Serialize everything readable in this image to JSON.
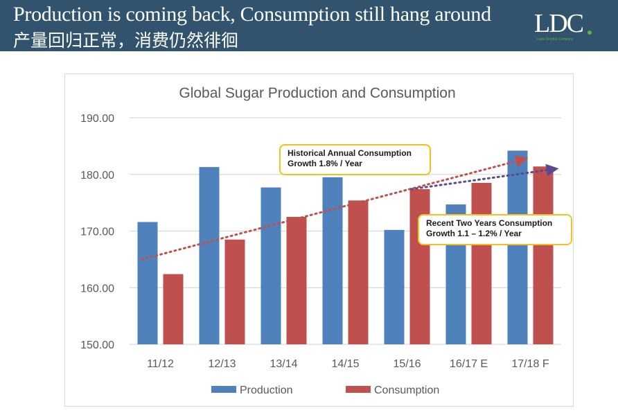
{
  "header": {
    "title_en": "Production is coming back, Consumption still hang around",
    "title_zh": "产量回归正常，消费仍然徘徊",
    "logo_text": "LDC",
    "logo_subtext": "Louis Dreyfus Company",
    "background_color": "#31536d",
    "logo_accent_color": "#5cb33e"
  },
  "chart_data": {
    "type": "bar",
    "title": "Global Sugar Production and Consumption",
    "xlabel": "",
    "ylabel": "",
    "categories": [
      "11/12",
      "12/13",
      "13/14",
      "14/15",
      "15/16",
      "16/17 E",
      "17/18 F"
    ],
    "series": [
      {
        "name": "Production",
        "color": "#4f81bd",
        "values": [
          171.6,
          181.3,
          177.7,
          179.5,
          170.2,
          174.7,
          184.2
        ]
      },
      {
        "name": "Consumption",
        "color": "#c0504d",
        "values": [
          162.4,
          168.5,
          172.5,
          175.4,
          177.4,
          178.5,
          181.4
        ]
      }
    ],
    "ylim": [
      150,
      190
    ],
    "yticks": [
      "150.00",
      "160.00",
      "170.00",
      "180.00",
      "190.00"
    ],
    "ytick_values": [
      150,
      160,
      170,
      180,
      190
    ],
    "grid": true,
    "legend_position": "bottom",
    "trendlines": [
      {
        "name": "historical-trend",
        "color": "#c0504d",
        "style": "dotted-arrow",
        "from": {
          "category_index": 0,
          "value": 165.0
        },
        "to": {
          "category_index": 6,
          "value": 182.6
        }
      },
      {
        "name": "recent-trend",
        "color": "#5b4a8b",
        "style": "dotted-arrow",
        "from": {
          "category_index": 4,
          "value": 177.4
        },
        "to": {
          "category_index": 6,
          "value": 180.9
        }
      }
    ],
    "annotations": [
      {
        "line1": "Historical Annual Consumption",
        "line2": "Growth 1.8% / Year"
      },
      {
        "line1": "Recent Two Years Consumption",
        "line2": "Growth 1.1 – 1.2% / Year"
      }
    ]
  }
}
